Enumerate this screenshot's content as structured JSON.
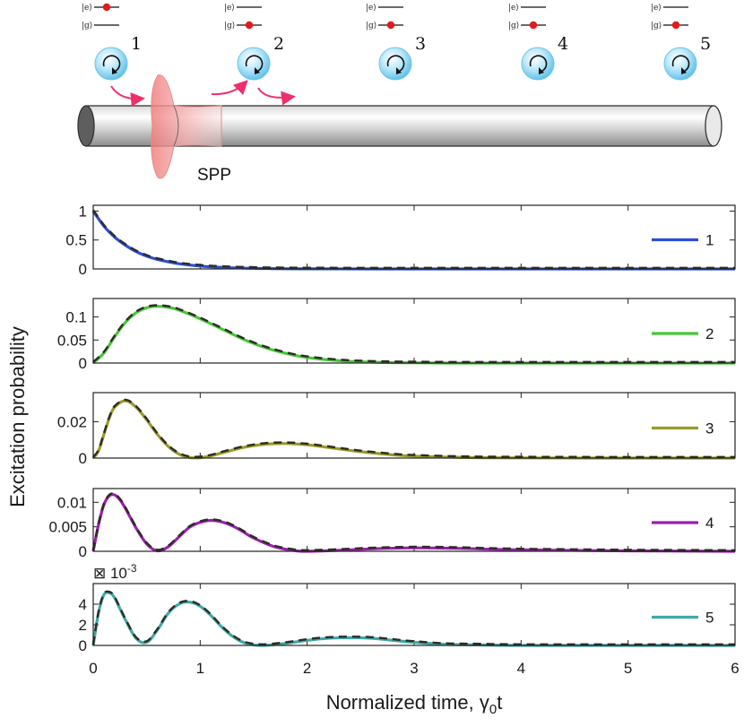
{
  "schematic": {
    "atom_labels": [
      "1",
      "2",
      "3",
      "4",
      "5"
    ],
    "excited_label": "|e⟩",
    "ground_label": "|g⟩",
    "spp_label": "SPP",
    "excited_atom_index": 0,
    "colors": {
      "atom": "#86d3f2",
      "arrow": "#ef2f6b",
      "dot": "#e41a1c",
      "pulse": "#f59a9a"
    }
  },
  "chart_data": {
    "type": "line",
    "xlabel": "Normalized time, γ",
    "xlabel_sub": "0",
    "xlabel_tail": "t",
    "ylabel": "Excitation probability",
    "xlim": [
      0,
      6
    ],
    "xticks": [
      0,
      1,
      2,
      3,
      4,
      5,
      6
    ],
    "xtick_labels": [
      "0",
      "1",
      "2",
      "3",
      "4",
      "5",
      "6"
    ],
    "panels": [
      {
        "legend": "1",
        "color": "#2a4fd6",
        "ylim": [
          0,
          1.1
        ],
        "yticks": [
          0,
          0.5,
          1
        ],
        "ytick_labels": [
          "0",
          "0.5",
          "1"
        ],
        "x": [
          0,
          0.1,
          0.2,
          0.3,
          0.4,
          0.5,
          0.6,
          0.8,
          1.0,
          1.2,
          1.5,
          2,
          3,
          4,
          5,
          6
        ],
        "y": [
          1,
          0.74,
          0.55,
          0.41,
          0.3,
          0.22,
          0.165,
          0.09,
          0.05,
          0.027,
          0.011,
          0.002,
          0,
          0,
          0,
          0
        ]
      },
      {
        "legend": "2",
        "color": "#45c837",
        "ylim": [
          0,
          0.14
        ],
        "yticks": [
          0,
          0.05,
          0.1
        ],
        "ytick_labels": [
          "0",
          "0.05",
          "0.1"
        ],
        "x": [
          0,
          0.1,
          0.2,
          0.3,
          0.4,
          0.5,
          0.6,
          0.7,
          0.8,
          1.0,
          1.2,
          1.4,
          1.6,
          1.8,
          2.0,
          2.3,
          2.6,
          3.0,
          3.5,
          4,
          5,
          6
        ],
        "y": [
          0,
          0.022,
          0.057,
          0.088,
          0.109,
          0.12,
          0.123,
          0.121,
          0.115,
          0.096,
          0.074,
          0.052,
          0.034,
          0.021,
          0.012,
          0.005,
          0.002,
          0.0005,
          0,
          0,
          0,
          0
        ]
      },
      {
        "legend": "3",
        "color": "#9a9a28",
        "ylim": [
          0,
          0.036
        ],
        "yticks": [
          0,
          0.02
        ],
        "ytick_labels": [
          "0",
          "0.02"
        ],
        "x": [
          0,
          0.05,
          0.1,
          0.15,
          0.2,
          0.3,
          0.4,
          0.5,
          0.6,
          0.7,
          0.8,
          0.9,
          1.0,
          1.1,
          1.2,
          1.4,
          1.6,
          1.8,
          2.0,
          2.2,
          2.5,
          2.8,
          3.0,
          3.5,
          4,
          5,
          6
        ],
        "y": [
          0,
          0.004,
          0.013,
          0.022,
          0.028,
          0.0315,
          0.028,
          0.021,
          0.013,
          0.0065,
          0.0022,
          0.0003,
          0.0002,
          0.0012,
          0.0028,
          0.0058,
          0.0076,
          0.008,
          0.0073,
          0.0058,
          0.0035,
          0.0018,
          0.0011,
          0.0003,
          0.0001,
          0,
          0
        ]
      },
      {
        "legend": "4",
        "color": "#9b1fb0",
        "ylim": [
          0,
          0.0128
        ],
        "yticks": [
          0,
          0.005,
          0.01
        ],
        "ytick_labels": [
          "0",
          "0.005",
          "0.01"
        ],
        "x": [
          0,
          0.05,
          0.1,
          0.15,
          0.2,
          0.25,
          0.3,
          0.4,
          0.5,
          0.6,
          0.7,
          0.8,
          0.9,
          1.0,
          1.1,
          1.2,
          1.3,
          1.4,
          1.5,
          1.7,
          1.9,
          2.0,
          2.3,
          2.6,
          3.0,
          3.4,
          4,
          5,
          6
        ],
        "y": [
          0,
          0.0055,
          0.0095,
          0.0113,
          0.0115,
          0.0105,
          0.0088,
          0.0048,
          0.0015,
          0.0001,
          0.0009,
          0.0029,
          0.0049,
          0.0059,
          0.0063,
          0.006,
          0.0052,
          0.004,
          0.0027,
          0.0009,
          0.0001,
          0.0,
          0.0002,
          0.0005,
          0.0007,
          0.0006,
          0.0003,
          0.0001,
          0
        ]
      },
      {
        "legend": "5",
        "color": "#3ea8a8",
        "ylim": [
          0,
          0.006
        ],
        "yticks": [
          0,
          0.002,
          0.004
        ],
        "ytick_labels": [
          "0",
          "2",
          "4"
        ],
        "y_exponent": "⊠ 10",
        "y_exponent_power": "-3",
        "x": [
          0,
          0.05,
          0.1,
          0.15,
          0.2,
          0.3,
          0.4,
          0.5,
          0.6,
          0.7,
          0.8,
          0.9,
          1.0,
          1.1,
          1.2,
          1.3,
          1.4,
          1.5,
          1.6,
          1.8,
          2.0,
          2.2,
          2.4,
          2.6,
          2.8,
          3.0,
          3.3,
          3.6,
          4,
          5,
          6
        ],
        "y": [
          0,
          0.0032,
          0.0049,
          0.0051,
          0.0046,
          0.0025,
          0.0007,
          0.0003,
          0.0015,
          0.0031,
          0.004,
          0.0042,
          0.0038,
          0.0029,
          0.0018,
          0.0009,
          0.0003,
          5e-05,
          0.0,
          0.0002,
          0.0005,
          0.0007,
          0.00075,
          0.0007,
          0.0005,
          0.0003,
          0.0001,
          5e-05,
          0,
          0,
          0
        ]
      }
    ]
  }
}
